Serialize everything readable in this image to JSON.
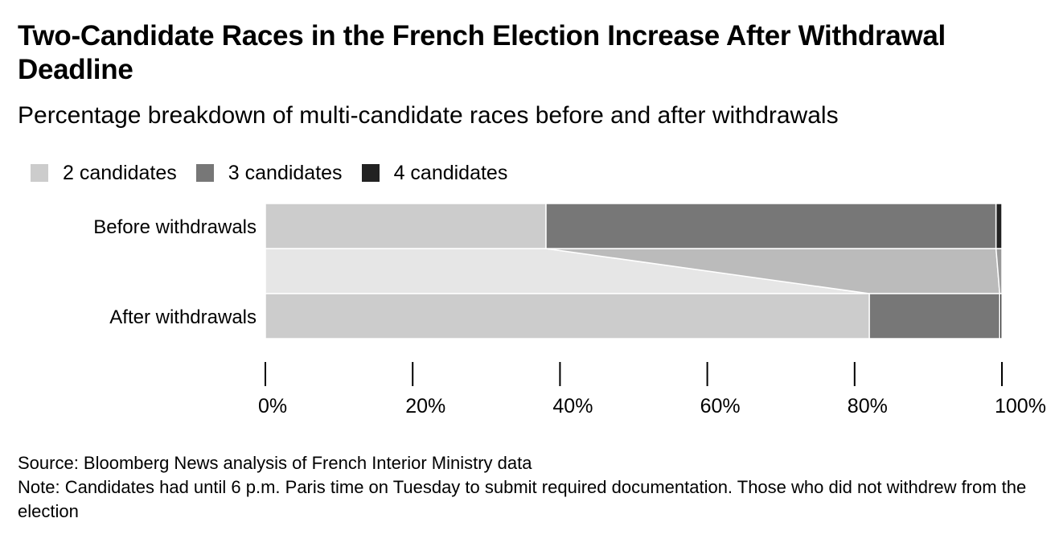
{
  "title": "Two-Candidate Races in the French Election Increase After Withdrawal Deadline",
  "subtitle": "Percentage breakdown of multi-candidate races before and after withdrawals",
  "source": "Source: Bloomberg News analysis of French Interior Ministry data",
  "note": "Note: Candidates had until 6 p.m. Paris time on Tuesday to submit required documentation. Those who did not withdrew from the election",
  "chart_data": {
    "type": "bar",
    "orientation": "horizontal",
    "stacked": true,
    "categories": [
      "Before withdrawals",
      "After withdrawals"
    ],
    "series": [
      {
        "name": "2 candidates",
        "color": "#cccccc",
        "values": [
          38.1,
          82.0
        ]
      },
      {
        "name": "3 candidates",
        "color": "#777777",
        "values": [
          61.1,
          17.7
        ]
      },
      {
        "name": "4 candidates",
        "color": "#222222",
        "values": [
          0.8,
          0.3
        ]
      }
    ],
    "xlim": [
      0,
      100
    ],
    "x_ticks": [
      "0%",
      "20%",
      "40%",
      "60%",
      "80%",
      "100%"
    ],
    "x_tick_values": [
      0,
      20,
      40,
      60,
      80,
      100
    ],
    "legend_position": "top-left",
    "grid": false,
    "connector_colors": {
      "2 candidates": "#e6e6e6",
      "3 candidates": "#bbbbbb",
      "4 candidates": "#999999"
    }
  }
}
